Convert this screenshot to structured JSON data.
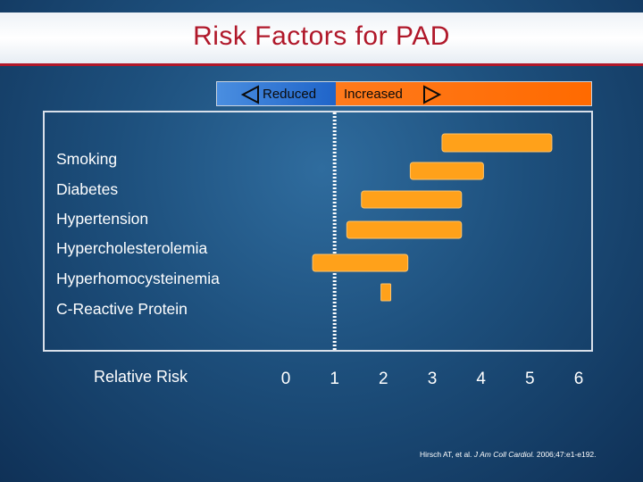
{
  "slide": {
    "title": "Risk Factors for PAD",
    "citation_prefix": "Hirsch AT, et al.",
    "citation_journal": "J Am Coll Cardiol.",
    "citation_suffix": "2006;47:e1-e192."
  },
  "legend": {
    "reduced_label": "Reduced",
    "increased_label": "Increased",
    "reduced_color": "#2a6fd1",
    "increased_color": "#ff6a00"
  },
  "chart_data": {
    "type": "bar",
    "orientation": "horizontal-range",
    "xlabel": "Relative Risk",
    "xlim": [
      0,
      6
    ],
    "xticks": [
      "0",
      "1",
      "2",
      "3",
      "4",
      "5",
      "6"
    ],
    "reference_line": 1,
    "bar_color": "#ffa11a",
    "categories": [
      "Smoking",
      "Diabetes",
      "Hypertension",
      "Hypercholesterolemia",
      "Hyperhomocysteinemia",
      "C-Reactive Protein"
    ],
    "ranges": [
      [
        3.2,
        5.45
      ],
      [
        2.55,
        4.05
      ],
      [
        1.55,
        3.6
      ],
      [
        1.25,
        3.6
      ],
      [
        0.55,
        2.5
      ],
      [
        1.95,
        2.15
      ]
    ]
  }
}
